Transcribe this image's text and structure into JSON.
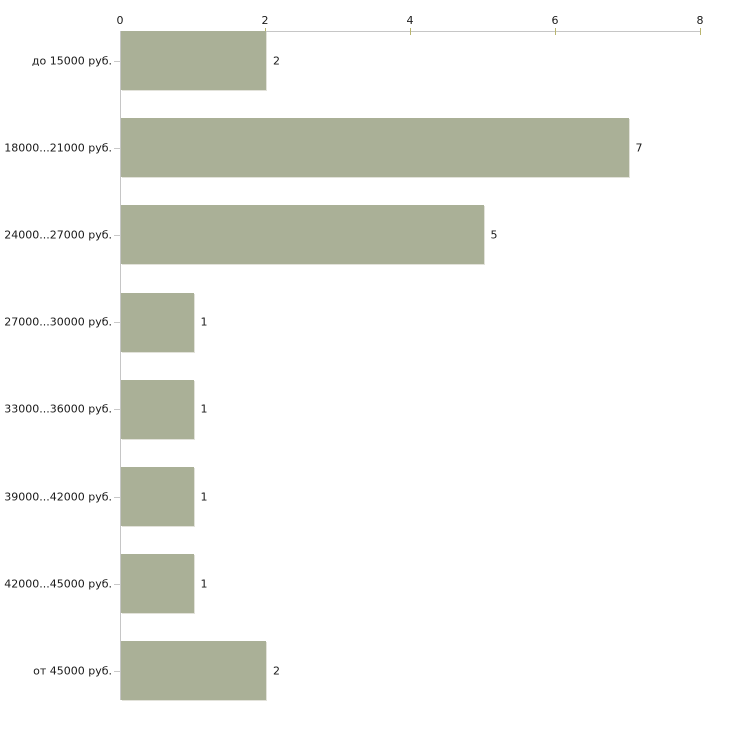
{
  "chart_data": {
    "type": "bar",
    "orientation": "horizontal",
    "title": "",
    "xlabel": "",
    "ylabel": "",
    "categories": [
      "до 15000 руб.",
      "18000...21000 руб.",
      "24000...27000 руб.",
      "27000...30000 руб.",
      "33000...36000 руб.",
      "39000...42000 руб.",
      "42000...45000 руб.",
      "от 45000 руб."
    ],
    "values": [
      2,
      7,
      5,
      1,
      1,
      1,
      1,
      2
    ],
    "value_labels": [
      "2",
      "7",
      "5",
      "1",
      "1",
      "1",
      "1",
      "2"
    ],
    "xlim": [
      0,
      8
    ],
    "x_ticks": [
      0,
      2,
      4,
      6,
      8
    ],
    "axis_position": "top",
    "grid": false,
    "legend": false,
    "colors": {
      "bar_fill": "#aab097",
      "axis_line": "#c6c6c6",
      "axis_tick": "#b9b56f",
      "category_tick": "#c9c9c9",
      "text": "#1a1a1a",
      "background": "#ffffff"
    }
  }
}
